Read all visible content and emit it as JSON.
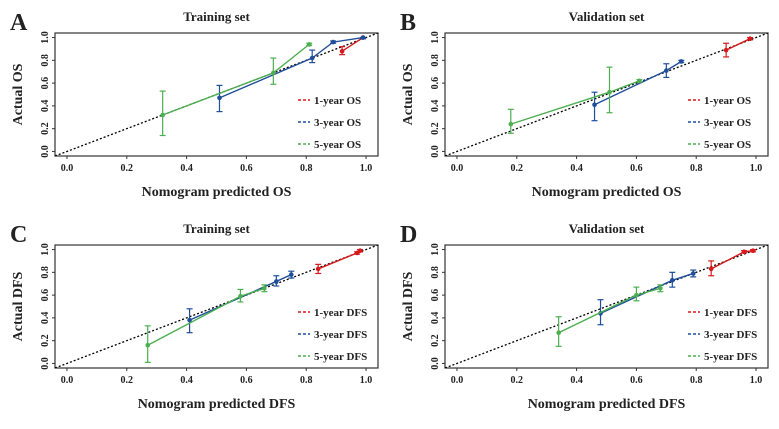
{
  "colors": {
    "1-year": "#d7191c",
    "3-year": "#1f4e9c",
    "5-year": "#4caf50",
    "ideal": "#000000"
  },
  "chart_data": [
    {
      "panel": "A",
      "type": "line",
      "title": "Training set",
      "xlabel": "Nomogram predicted OS",
      "ylabel": "Actual OS",
      "xlim": [
        -0.04,
        1.04
      ],
      "ylim": [
        -0.04,
        1.04
      ],
      "xticks": [
        "0.0",
        "0.2",
        "0.4",
        "0.6",
        "0.8",
        "1.0"
      ],
      "yticks": [
        "0.0",
        "0.2",
        "0.4",
        "0.6",
        "0.8",
        "1.0"
      ],
      "legend_position": "bottom-right",
      "series": [
        {
          "name": "1-year OS",
          "key": "1-year",
          "points": [
            {
              "x": 0.92,
              "y": 0.88,
              "lo": 0.85,
              "hi": 0.92
            },
            {
              "x": 0.99,
              "y": 1.0,
              "lo": 0.99,
              "hi": 1.0
            }
          ]
        },
        {
          "name": "3-year OS",
          "key": "3-year",
          "points": [
            {
              "x": 0.51,
              "y": 0.47,
              "lo": 0.35,
              "hi": 0.58
            },
            {
              "x": 0.82,
              "y": 0.82,
              "lo": 0.78,
              "hi": 0.89
            },
            {
              "x": 0.89,
              "y": 0.96,
              "lo": 0.95,
              "hi": 0.97
            },
            {
              "x": 0.99,
              "y": 1.0,
              "lo": 0.99,
              "hi": 1.0
            }
          ]
        },
        {
          "name": "5-year OS",
          "key": "5-year",
          "points": [
            {
              "x": 0.32,
              "y": 0.32,
              "lo": 0.14,
              "hi": 0.53
            },
            {
              "x": 0.69,
              "y": 0.69,
              "lo": 0.59,
              "hi": 0.82
            },
            {
              "x": 0.81,
              "y": 0.94,
              "lo": 0.93,
              "hi": 0.95
            }
          ]
        }
      ]
    },
    {
      "panel": "B",
      "type": "line",
      "title": "Validation set",
      "xlabel": "Nomogram predicted OS",
      "ylabel": "Actual OS",
      "xlim": [
        -0.04,
        1.04
      ],
      "ylim": [
        -0.04,
        1.04
      ],
      "xticks": [
        "0.0",
        "0.2",
        "0.4",
        "0.6",
        "0.8",
        "1.0"
      ],
      "yticks": [
        "0.0",
        "0.2",
        "0.4",
        "0.6",
        "0.8",
        "1.0"
      ],
      "legend_position": "bottom-right",
      "series": [
        {
          "name": "1-year OS",
          "key": "1-year",
          "points": [
            {
              "x": 0.9,
              "y": 0.89,
              "lo": 0.83,
              "hi": 0.95
            },
            {
              "x": 0.98,
              "y": 0.99,
              "lo": 0.98,
              "hi": 1.0
            }
          ]
        },
        {
          "name": "3-year OS",
          "key": "3-year",
          "points": [
            {
              "x": 0.46,
              "y": 0.41,
              "lo": 0.27,
              "hi": 0.52
            },
            {
              "x": 0.7,
              "y": 0.71,
              "lo": 0.65,
              "hi": 0.77
            },
            {
              "x": 0.75,
              "y": 0.79,
              "lo": 0.78,
              "hi": 0.8
            }
          ]
        },
        {
          "name": "5-year OS",
          "key": "5-year",
          "points": [
            {
              "x": 0.18,
              "y": 0.24,
              "lo": 0.16,
              "hi": 0.37
            },
            {
              "x": 0.51,
              "y": 0.52,
              "lo": 0.34,
              "hi": 0.74
            },
            {
              "x": 0.61,
              "y": 0.62,
              "lo": 0.61,
              "hi": 0.63
            }
          ]
        }
      ]
    },
    {
      "panel": "C",
      "type": "line",
      "title": "Training set",
      "xlabel": "Nomogram predicted DFS",
      "ylabel": "Actual DFS",
      "xlim": [
        -0.04,
        1.04
      ],
      "ylim": [
        -0.04,
        1.04
      ],
      "xticks": [
        "0.0",
        "0.2",
        "0.4",
        "0.6",
        "0.8",
        "1.0"
      ],
      "yticks": [
        "0.0",
        "0.2",
        "0.4",
        "0.6",
        "0.8",
        "1.0"
      ],
      "legend_position": "bottom-right",
      "series": [
        {
          "name": "1-year DFS",
          "key": "1-year",
          "points": [
            {
              "x": 0.84,
              "y": 0.83,
              "lo": 0.79,
              "hi": 0.87
            },
            {
              "x": 0.97,
              "y": 0.97,
              "lo": 0.96,
              "hi": 0.98
            },
            {
              "x": 0.98,
              "y": 0.99,
              "lo": 0.98,
              "hi": 1.0
            }
          ]
        },
        {
          "name": "3-year DFS",
          "key": "3-year",
          "points": [
            {
              "x": 0.41,
              "y": 0.38,
              "lo": 0.27,
              "hi": 0.48
            },
            {
              "x": 0.7,
              "y": 0.72,
              "lo": 0.68,
              "hi": 0.77
            },
            {
              "x": 0.75,
              "y": 0.78,
              "lo": 0.75,
              "hi": 0.81
            }
          ]
        },
        {
          "name": "5-year DFS",
          "key": "5-year",
          "points": [
            {
              "x": 0.27,
              "y": 0.16,
              "lo": 0.01,
              "hi": 0.33
            },
            {
              "x": 0.58,
              "y": 0.59,
              "lo": 0.54,
              "hi": 0.65
            },
            {
              "x": 0.66,
              "y": 0.66,
              "lo": 0.63,
              "hi": 0.69
            }
          ]
        }
      ]
    },
    {
      "panel": "D",
      "type": "line",
      "title": "Validation set",
      "xlabel": "Nomogram predicted DFS",
      "ylabel": "Actual DFS",
      "xlim": [
        -0.04,
        1.04
      ],
      "ylim": [
        -0.04,
        1.04
      ],
      "xticks": [
        "0.0",
        "0.2",
        "0.4",
        "0.6",
        "0.8",
        "1.0"
      ],
      "yticks": [
        "0.0",
        "0.2",
        "0.4",
        "0.6",
        "0.8",
        "1.0"
      ],
      "legend_position": "bottom-right",
      "series": [
        {
          "name": "1-year DFS",
          "key": "1-year",
          "points": [
            {
              "x": 0.85,
              "y": 0.83,
              "lo": 0.77,
              "hi": 0.9
            },
            {
              "x": 0.96,
              "y": 0.98,
              "lo": 0.97,
              "hi": 0.99
            },
            {
              "x": 0.99,
              "y": 0.99,
              "lo": 0.98,
              "hi": 1.0
            }
          ]
        },
        {
          "name": "3-year DFS",
          "key": "3-year",
          "points": [
            {
              "x": 0.48,
              "y": 0.44,
              "lo": 0.34,
              "hi": 0.56
            },
            {
              "x": 0.72,
              "y": 0.73,
              "lo": 0.67,
              "hi": 0.8
            },
            {
              "x": 0.79,
              "y": 0.79,
              "lo": 0.76,
              "hi": 0.82
            }
          ]
        },
        {
          "name": "5-year DFS",
          "key": "5-year",
          "points": [
            {
              "x": 0.34,
              "y": 0.27,
              "lo": 0.15,
              "hi": 0.41
            },
            {
              "x": 0.6,
              "y": 0.6,
              "lo": 0.55,
              "hi": 0.67
            },
            {
              "x": 0.68,
              "y": 0.66,
              "lo": 0.63,
              "hi": 0.69
            }
          ]
        }
      ]
    }
  ]
}
